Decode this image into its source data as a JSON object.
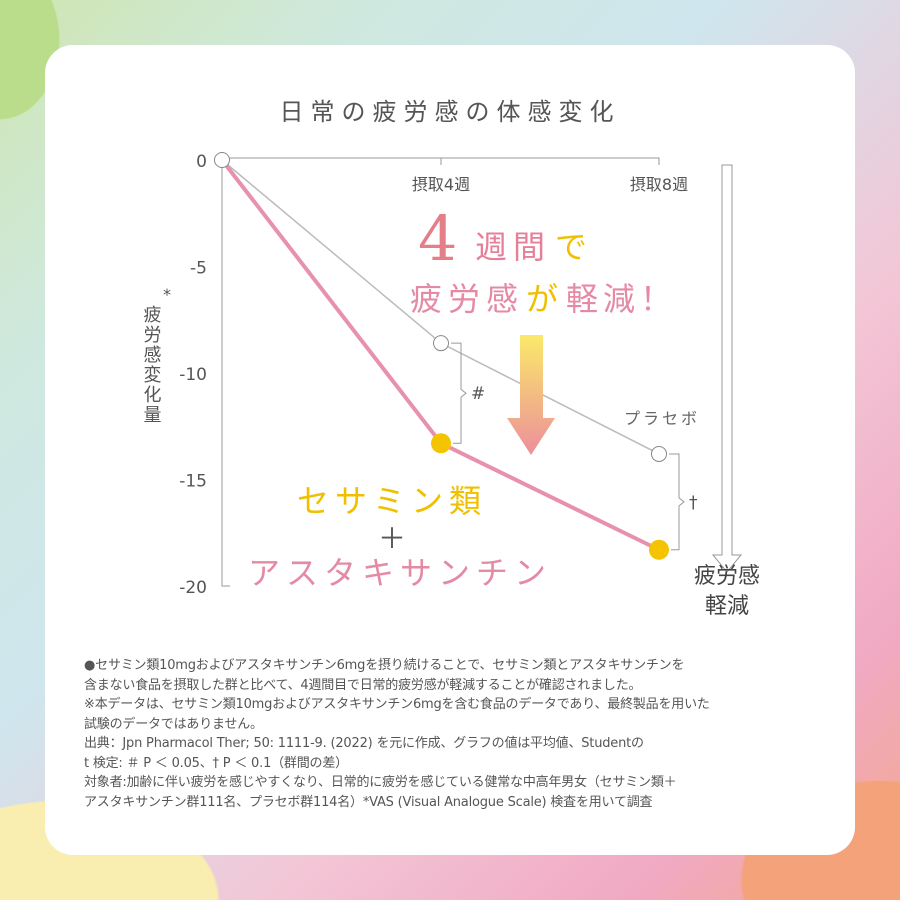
{
  "chart_data": {
    "type": "line",
    "title": "日常の疲労感の体感変化",
    "ylabel": "疲労感変化量",
    "ylabel_mark": "*",
    "x": [
      "0",
      "摂取4週",
      "摂取8週"
    ],
    "yticks": [
      "0",
      "-5",
      "-10",
      "-15",
      "-20"
    ],
    "ylim": [
      -20,
      0
    ],
    "series": [
      {
        "name": "プラセボ",
        "values": [
          0,
          -8.6,
          -13.8
        ],
        "color": "#bbbbbb"
      },
      {
        "name": "セサミン類＋アスタキサンチン",
        "values": [
          0,
          -13.3,
          -18.3
        ],
        "color": "#e891ad",
        "marker_color": "#f5c400"
      }
    ],
    "significance": [
      {
        "x": "摂取4週",
        "mark": "#"
      },
      {
        "x": "摂取8週",
        "mark": "†"
      }
    ],
    "annotations": {
      "big_num": "4",
      "line1_rest_a": "週間",
      "line1_rest_b": "で",
      "line2_a": "疲労感",
      "line2_b": "が",
      "line2_c": "軽減！",
      "combo_1": "セサミン類",
      "combo_plus": "＋",
      "combo_2": "アスタキサンチン",
      "placebo_label": "プラセボ",
      "arrow_label_1": "疲労感",
      "arrow_label_2": "軽減"
    },
    "grid": false
  },
  "notes": [
    "●セサミン類10mgおよびアスタキサンチン6mgを摂り続けることで、セサミン類とアスタキサンチンを",
    "含まない食品を摂取した群と比べて、4週間目で日常的疲労感が軽減することが確認されました。",
    "※本データは、セサミン類10mgおよびアスタキサンチン6mgを含む食品のデータであり、最終製品を用いた",
    "試験のデータではありません。",
    "出典：Jpn Pharmacol Ther; 50: 1111-9. (2022) を元に作成、グラフの値は平均値、Studentの",
    "t 検定: ＃ P ＜ 0.05、† P ＜ 0.1（群間の差）",
    "対象者:加齢に伴い疲労を感じやすくなり、日常的に疲労を感じている健常な中高年男女（セサミン類＋",
    "アスタキサンチン群111名、プラセボ群114名）*VAS (Visual Analogue Scale) 検査を用いて調査"
  ]
}
